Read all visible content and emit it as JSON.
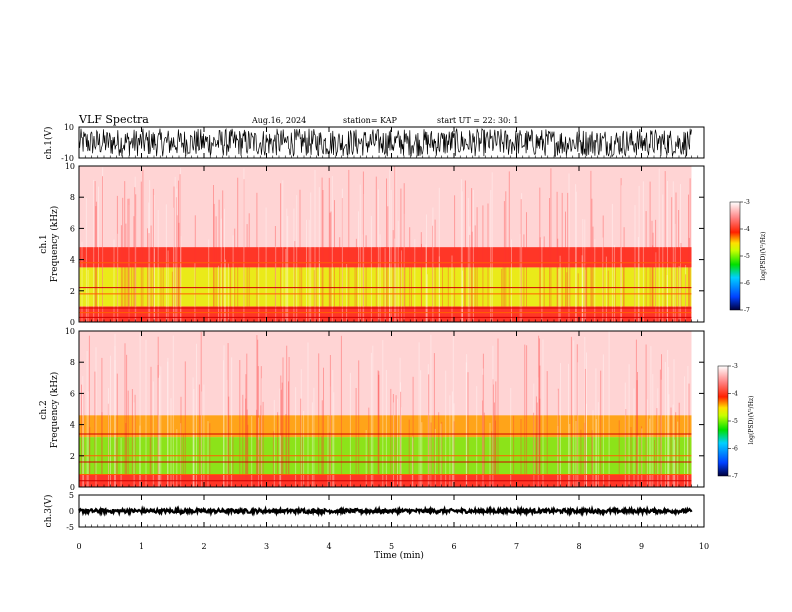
{
  "header": {
    "title": "VLF Spectra",
    "date": "Aug.16, 2024",
    "station": "station= KAP",
    "start": "start  UT  =   22: 30: 1"
  },
  "colors": {
    "spectrum_low": "#0000c8",
    "spectrum_mid_low": "#00c800",
    "spectrum_mid": "#e6e600",
    "spectrum_high": "#ff0000",
    "spectrum_top": "#ffffff",
    "axis": "#000000"
  },
  "chart_data": [
    {
      "type": "line",
      "id": "ch1-waveform",
      "ylabel": "ch.1(V)",
      "ylim": [
        -10,
        10
      ],
      "yticks": [
        "10",
        "-10"
      ],
      "x_range": [
        0,
        9.8
      ],
      "amplitude_range": [
        -9,
        9
      ]
    },
    {
      "type": "heatmap",
      "id": "ch1-spectrogram",
      "ylabel_top": "ch.1",
      "ylabel": "Frequency  (kHz)",
      "ylim": [
        0,
        10
      ],
      "yticks": [
        "0",
        "2",
        "4",
        "6",
        "8",
        "10"
      ],
      "colorbar": {
        "label": "log(PSD)(V²/Hz)",
        "range": [
          -7,
          -3
        ],
        "ticks": [
          "-3",
          "-4",
          "-5",
          "-6",
          "-7"
        ]
      },
      "bands_khz": [
        {
          "from": 0,
          "to": 1,
          "level": "red"
        },
        {
          "from": 1,
          "to": 3.5,
          "level": "yellow-green"
        },
        {
          "from": 3.5,
          "to": 4.8,
          "level": "red"
        },
        {
          "from": 4.8,
          "to": 10,
          "level": "light red"
        }
      ],
      "lines_khz": [
        0.3,
        0.6,
        0.9,
        1.8,
        2.2,
        3.8
      ]
    },
    {
      "type": "heatmap",
      "id": "ch2-spectrogram",
      "ylabel_top": "ch.2",
      "ylabel": "Frequency  (kHz)",
      "ylim": [
        0,
        10
      ],
      "yticks": [
        "0",
        "2",
        "4",
        "6",
        "8",
        "10"
      ],
      "colorbar": {
        "label": "log(PSD)(V²/Hz)",
        "range": [
          -7,
          -3
        ],
        "ticks": [
          "-3",
          "-4",
          "-5",
          "-6",
          "-7"
        ]
      },
      "bands_khz": [
        {
          "from": 0,
          "to": 0.8,
          "level": "red"
        },
        {
          "from": 0.8,
          "to": 3.2,
          "level": "green"
        },
        {
          "from": 3.2,
          "to": 4.6,
          "level": "yellow-red"
        },
        {
          "from": 4.6,
          "to": 10,
          "level": "light red"
        }
      ],
      "lines_khz": [
        0.4,
        0.8,
        1.6,
        2.0,
        3.4
      ]
    },
    {
      "type": "line",
      "id": "ch3-waveform",
      "ylabel": "ch.3(V)",
      "ylim": [
        -5,
        5
      ],
      "yticks": [
        "5",
        "0",
        "-5"
      ],
      "x_range": [
        0,
        9.8
      ],
      "amplitude_range": [
        -0.6,
        0.6
      ]
    }
  ],
  "x_axis": {
    "label": "Time  (min)",
    "range": [
      0,
      10
    ],
    "ticks": [
      "0",
      "1",
      "2",
      "3",
      "4",
      "5",
      "6",
      "7",
      "8",
      "9",
      "10"
    ]
  }
}
